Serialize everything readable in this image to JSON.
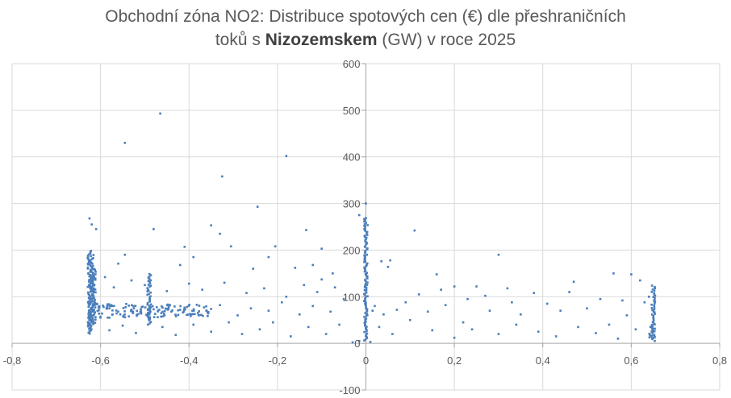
{
  "chart_data": {
    "type": "scatter",
    "title_part1": "Obchodní zóna NO2: Distribuce spotových cen (€) dle přeshraničních",
    "title_part2": "toků s ",
    "title_bold": "Nizozemskem",
    "title_part3": " (GW) v roce 2025",
    "xlim": [
      -0.8,
      0.8
    ],
    "ylim": [
      -100,
      600
    ],
    "x_ticks": [
      "-0,8",
      "-0,6",
      "-0,4",
      "-0,2",
      "0",
      "0,2",
      "0,4",
      "0,6",
      "0,8"
    ],
    "x_tick_values": [
      -0.8,
      -0.6,
      -0.4,
      -0.2,
      0,
      0.2,
      0.4,
      0.6,
      0.8
    ],
    "y_ticks": [
      "-100",
      "0",
      "100",
      "200",
      "300",
      "400",
      "500",
      "600"
    ],
    "y_tick_values": [
      -100,
      0,
      100,
      200,
      300,
      400,
      500,
      600
    ],
    "grid": true,
    "marker_color": "#4a7ebb",
    "series": [
      {
        "points": [
          [
            -0.465,
            493
          ],
          [
            -0.545,
            430
          ],
          [
            -0.18,
            402
          ],
          [
            -0.325,
            358
          ],
          [
            -0.245,
            293
          ],
          [
            -0.625,
            268
          ],
          [
            0.0,
            300
          ],
          [
            -0.015,
            275
          ],
          [
            0.11,
            242
          ],
          [
            -0.35,
            253
          ],
          [
            -0.33,
            235
          ],
          [
            -0.48,
            245
          ],
          [
            -0.62,
            255
          ],
          [
            -0.61,
            245
          ],
          [
            -0.41,
            207
          ],
          [
            -0.305,
            208
          ],
          [
            -0.205,
            208
          ],
          [
            -0.135,
            243
          ],
          [
            -0.16,
            162
          ],
          [
            0.035,
            176
          ],
          [
            0.055,
            178
          ],
          [
            0.3,
            190
          ],
          [
            0.05,
            164
          ],
          [
            -0.1,
            137
          ],
          [
            -0.12,
            168
          ],
          [
            -0.255,
            160
          ],
          [
            -0.42,
            168
          ],
          [
            -0.545,
            190
          ],
          [
            -0.56,
            171
          ],
          [
            -0.39,
            185
          ],
          [
            -0.22,
            185
          ],
          [
            -0.1,
            203
          ],
          [
            -0.075,
            150
          ],
          [
            0.16,
            148
          ],
          [
            0.56,
            150
          ],
          [
            0.6,
            148
          ],
          [
            0.62,
            135
          ],
          [
            0.47,
            132
          ],
          [
            0.38,
            108
          ],
          [
            0.32,
            118
          ],
          [
            0.25,
            122
          ],
          [
            0.2,
            122
          ],
          [
            0.41,
            85
          ],
          [
            0.44,
            70
          ],
          [
            0.5,
            75
          ],
          [
            0.53,
            95
          ],
          [
            0.58,
            92
          ],
          [
            0.63,
            88
          ],
          [
            0.35,
            62
          ],
          [
            0.28,
            70
          ],
          [
            0.22,
            45
          ],
          [
            0.18,
            82
          ],
          [
            0.14,
            68
          ],
          [
            0.09,
            88
          ],
          [
            0.07,
            72
          ],
          [
            0.04,
            62
          ],
          [
            0.02,
            80
          ],
          [
            0.015,
            70
          ],
          [
            0.03,
            35
          ],
          [
            0.06,
            20
          ],
          [
            0.1,
            50
          ],
          [
            0.15,
            28
          ],
          [
            0.2,
            12
          ],
          [
            0.24,
            30
          ],
          [
            0.3,
            20
          ],
          [
            0.34,
            40
          ],
          [
            0.39,
            25
          ],
          [
            0.43,
            15
          ],
          [
            0.48,
            35
          ],
          [
            0.52,
            22
          ],
          [
            0.57,
            10
          ],
          [
            0.61,
            30
          ],
          [
            0.12,
            105
          ],
          [
            0.17,
            115
          ],
          [
            0.23,
            95
          ],
          [
            0.27,
            102
          ],
          [
            0.33,
            88
          ],
          [
            0.46,
            110
          ],
          [
            0.55,
            40
          ],
          [
            0.59,
            60
          ],
          [
            0.64,
            100
          ],
          [
            -0.05,
            95
          ],
          [
            -0.08,
            68
          ],
          [
            -0.12,
            80
          ],
          [
            -0.15,
            62
          ],
          [
            -0.19,
            88
          ],
          [
            -0.22,
            70
          ],
          [
            -0.26,
            75
          ],
          [
            -0.29,
            60
          ],
          [
            -0.33,
            82
          ],
          [
            -0.36,
            70
          ],
          [
            -0.38,
            65
          ],
          [
            -0.42,
            72
          ],
          [
            -0.44,
            68
          ],
          [
            -0.47,
            70
          ],
          [
            -0.51,
            66
          ],
          [
            -0.53,
            72
          ],
          [
            -0.56,
            68
          ],
          [
            -0.58,
            75
          ],
          [
            -0.06,
            40
          ],
          [
            -0.09,
            20
          ],
          [
            -0.13,
            35
          ],
          [
            -0.17,
            15
          ],
          [
            -0.21,
            45
          ],
          [
            -0.24,
            30
          ],
          [
            -0.28,
            20
          ],
          [
            -0.31,
            45
          ],
          [
            -0.35,
            25
          ],
          [
            -0.39,
            40
          ],
          [
            -0.43,
            18
          ],
          [
            -0.46,
            35
          ],
          [
            -0.52,
            22
          ],
          [
            -0.55,
            38
          ],
          [
            -0.58,
            28
          ],
          [
            -0.07,
            120
          ],
          [
            -0.11,
            110
          ],
          [
            -0.14,
            125
          ],
          [
            -0.18,
            100
          ],
          [
            -0.23,
            118
          ],
          [
            -0.27,
            108
          ],
          [
            -0.32,
            130
          ],
          [
            -0.37,
            115
          ],
          [
            -0.4,
            128
          ],
          [
            -0.45,
            112
          ],
          [
            -0.5,
            125
          ],
          [
            -0.53,
            135
          ],
          [
            -0.57,
            120
          ],
          [
            -0.59,
            142
          ],
          [
            -0.015,
            5
          ],
          [
            -0.03,
            2
          ],
          [
            0.01,
            3
          ]
        ]
      }
    ],
    "dense_bands": [
      {
        "x": -0.625,
        "y_from": 20,
        "y_to": 200
      },
      {
        "x": -0.62,
        "y_from": 30,
        "y_to": 190
      },
      {
        "x": -0.615,
        "y_from": 40,
        "y_to": 160
      },
      {
        "x": -0.49,
        "y_from": 40,
        "y_to": 150
      },
      {
        "x": 0.0,
        "y_from": 5,
        "y_to": 270
      },
      {
        "x": 0.65,
        "y_from": 5,
        "y_to": 125
      },
      {
        "x": 0.645,
        "y_from": 10,
        "y_to": 40
      }
    ]
  }
}
